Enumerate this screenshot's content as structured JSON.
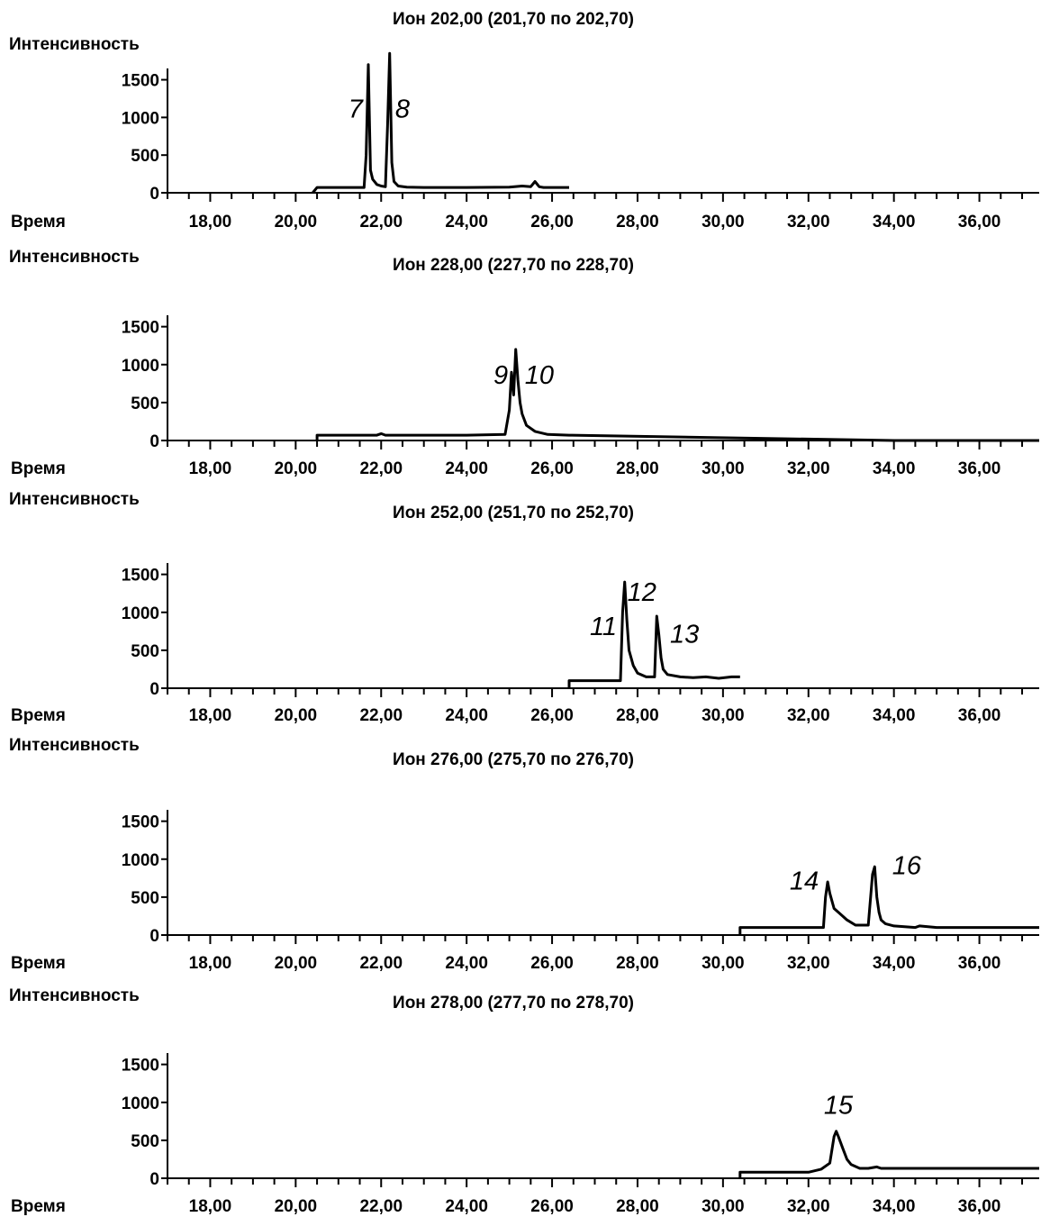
{
  "chart_data": [
    {
      "type": "line",
      "title": "Ион 202,00 (201,70 по 202,70)",
      "ylabel": "Интенсивность",
      "xlabel": "Время",
      "xlim": [
        17.0,
        37.4
      ],
      "ylim": [
        0,
        1650
      ],
      "yticks": [
        "0",
        "500",
        "1000",
        "1500"
      ],
      "xticks": [
        "18,00",
        "20,00",
        "22,00",
        "24,00",
        "26,00",
        "28,00",
        "30,00",
        "32,00",
        "34,00",
        "36,00"
      ],
      "series": [
        {
          "x": [
            20.4,
            20.5,
            21.6,
            21.65,
            21.7,
            21.75,
            21.8,
            21.9,
            22.0,
            22.1,
            22.15,
            22.2,
            22.25,
            22.3,
            22.4,
            22.6,
            23.0,
            24.0,
            25.0,
            25.3,
            25.5,
            25.6,
            25.7,
            25.8,
            26.0,
            26.4
          ],
          "y": [
            0,
            70,
            70,
            500,
            1700,
            300,
            180,
            110,
            90,
            80,
            900,
            1850,
            400,
            150,
            90,
            75,
            70,
            70,
            75,
            90,
            80,
            150,
            80,
            70,
            70,
            70
          ]
        }
      ],
      "annotations": [
        {
          "text": "7",
          "x": 21.4,
          "y": 1000
        },
        {
          "text": "8",
          "x": 22.5,
          "y": 1000
        }
      ]
    },
    {
      "type": "line",
      "title": "Ион 228,00 (227,70 по 228,70)",
      "ylabel": "Интенсивность",
      "xlabel": "Время",
      "xlim": [
        17.0,
        37.4
      ],
      "ylim": [
        0,
        1650
      ],
      "yticks": [
        "0",
        "500",
        "1000",
        "1500"
      ],
      "xticks": [
        "18,00",
        "20,00",
        "22,00",
        "24,00",
        "26,00",
        "28,00",
        "30,00",
        "32,00",
        "34,00",
        "36,00"
      ],
      "series": [
        {
          "x": [
            20.5,
            20.5,
            21.9,
            22.0,
            22.1,
            22.3,
            24.0,
            24.9,
            25.0,
            25.05,
            25.1,
            25.15,
            25.2,
            25.25,
            25.3,
            25.4,
            25.6,
            25.9,
            26.4,
            34.0,
            36.0,
            37.4
          ],
          "y": [
            0,
            70,
            70,
            90,
            70,
            70,
            70,
            80,
            400,
            900,
            600,
            1200,
            800,
            500,
            350,
            200,
            120,
            80,
            70,
            0,
            0,
            0
          ]
        }
      ],
      "annotations": [
        {
          "text": "9",
          "x": 24.8,
          "y": 750
        },
        {
          "text": "10",
          "x": 25.7,
          "y": 750
        }
      ]
    },
    {
      "type": "line",
      "title": "Ион 252,00 (251,70 по 252,70)",
      "ylabel": "Интенсивность",
      "xlabel": "Время",
      "xlim": [
        17.0,
        37.4
      ],
      "ylim": [
        0,
        1650
      ],
      "yticks": [
        "0",
        "500",
        "1000",
        "1500"
      ],
      "xticks": [
        "18,00",
        "20,00",
        "22,00",
        "24,00",
        "26,00",
        "28,00",
        "30,00",
        "32,00",
        "34,00",
        "36,00"
      ],
      "series": [
        {
          "x": [
            26.4,
            26.4,
            27.6,
            27.65,
            27.7,
            27.75,
            27.8,
            27.9,
            28.0,
            28.2,
            28.4,
            28.45,
            28.5,
            28.55,
            28.6,
            28.7,
            29.0,
            29.3,
            29.6,
            29.9,
            30.2,
            30.4
          ],
          "y": [
            0,
            100,
            100,
            1000,
            1400,
            900,
            500,
            300,
            200,
            150,
            150,
            950,
            700,
            400,
            250,
            180,
            150,
            140,
            150,
            130,
            150,
            150
          ]
        }
      ],
      "annotations": [
        {
          "text": "11",
          "x": 27.2,
          "y": 700
        },
        {
          "text": "12",
          "x": 28.1,
          "y": 1150
        },
        {
          "text": "13",
          "x": 29.1,
          "y": 600
        }
      ]
    },
    {
      "type": "line",
      "title": "Ион 276,00 (275,70 по 276,70)",
      "ylabel": "Интенсивность",
      "xlabel": "Время",
      "xlim": [
        17.0,
        37.4
      ],
      "ylim": [
        0,
        1650
      ],
      "yticks": [
        "0",
        "500",
        "1000",
        "1500"
      ],
      "xticks": [
        "18,00",
        "20,00",
        "22,00",
        "24,00",
        "26,00",
        "28,00",
        "30,00",
        "32,00",
        "34,00",
        "36,00"
      ],
      "series": [
        {
          "x": [
            30.4,
            30.4,
            32.35,
            32.4,
            32.45,
            32.5,
            32.6,
            32.7,
            32.9,
            33.1,
            33.4,
            33.5,
            33.55,
            33.6,
            33.65,
            33.7,
            33.8,
            34.0,
            34.5,
            34.6,
            35.0,
            37.4
          ],
          "y": [
            0,
            100,
            100,
            500,
            700,
            550,
            350,
            300,
            200,
            130,
            130,
            800,
            900,
            500,
            300,
            200,
            150,
            120,
            100,
            120,
            100,
            100
          ]
        }
      ],
      "annotations": [
        {
          "text": "14",
          "x": 31.9,
          "y": 600
        },
        {
          "text": "16",
          "x": 34.3,
          "y": 800
        }
      ]
    },
    {
      "type": "line",
      "title": "Ион 278,00 (277,70 по 278,70)",
      "ylabel": "Интенсивность",
      "xlabel": "Время",
      "xlim": [
        17.0,
        37.4
      ],
      "ylim": [
        0,
        1650
      ],
      "yticks": [
        "0",
        "500",
        "1000",
        "1500"
      ],
      "xticks": [
        "18,00",
        "20,00",
        "22,00",
        "24,00",
        "26,00",
        "28,00",
        "30,00",
        "32,00",
        "34,00",
        "36,00"
      ],
      "series": [
        {
          "x": [
            30.4,
            30.4,
            32.0,
            32.3,
            32.5,
            32.6,
            32.65,
            32.7,
            32.8,
            32.9,
            33.0,
            33.2,
            33.4,
            33.6,
            33.7,
            34.0,
            35.0,
            37.4
          ],
          "y": [
            0,
            80,
            80,
            120,
            200,
            550,
            620,
            550,
            400,
            250,
            180,
            130,
            130,
            150,
            130,
            130,
            130,
            130
          ]
        }
      ],
      "annotations": [
        {
          "text": "15",
          "x": 32.7,
          "y": 850
        }
      ]
    }
  ]
}
